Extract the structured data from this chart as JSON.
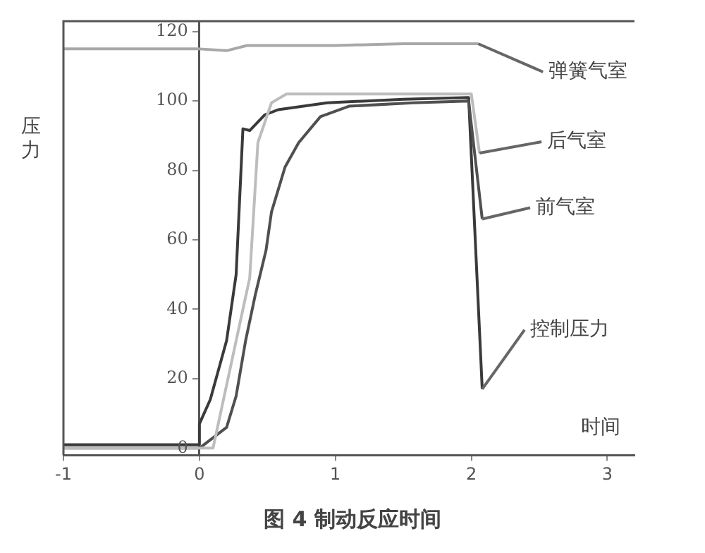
{
  "chart_data": {
    "type": "line",
    "title": "图 4 制动反应时间",
    "xlabel": "时间",
    "ylabel": "压力",
    "xlim": [
      -1,
      3.2
    ],
    "xticks": [
      -1,
      0,
      1,
      2,
      3
    ],
    "ylim": [
      -2,
      123
    ],
    "yticks": [
      0,
      20,
      40,
      60,
      80,
      100,
      120
    ],
    "grid": false,
    "legend": false,
    "marker": "none",
    "line_style": "solid",
    "series": [
      {
        "name": "弹簧气室",
        "color": "#a8a8a8",
        "x": [
          -1,
          0,
          0.2,
          0.35,
          0.5,
          1,
          1.5,
          2,
          2.05
        ],
        "values": [
          115,
          115,
          114.5,
          116,
          116,
          116,
          116.5,
          116.5,
          116.5
        ]
      },
      {
        "name": "后气室",
        "color": "#bdbdbd",
        "x": [
          -1,
          0.1,
          0.32,
          0.37,
          0.43,
          0.53,
          0.64,
          1.5,
          2.0,
          2.06
        ],
        "values": [
          0,
          0,
          40,
          49,
          88,
          99.5,
          102,
          102,
          102,
          85
        ]
      },
      {
        "name": "前气室",
        "color": "#505050",
        "x": [
          -1,
          0,
          0.2,
          0.27,
          0.34,
          0.41,
          0.49,
          0.53,
          0.63,
          0.73,
          0.89,
          1.1,
          1.57,
          1.98,
          2.08
        ],
        "values": [
          0,
          0,
          6,
          15,
          31,
          44,
          57,
          68,
          81,
          88,
          95.5,
          98.5,
          99.5,
          100,
          66
        ]
      },
      {
        "name": "控制压力",
        "color": "#3a3a3a",
        "x": [
          -1,
          0,
          0,
          0.08,
          0.2,
          0.27,
          0.32,
          0.37,
          0.48,
          0.58,
          0.94,
          1.5,
          1.98,
          2.08
        ],
        "values": [
          1,
          1,
          7,
          14,
          31,
          50,
          92,
          91.5,
          96,
          97.5,
          99.5,
          100.5,
          101,
          17
        ]
      }
    ]
  }
}
